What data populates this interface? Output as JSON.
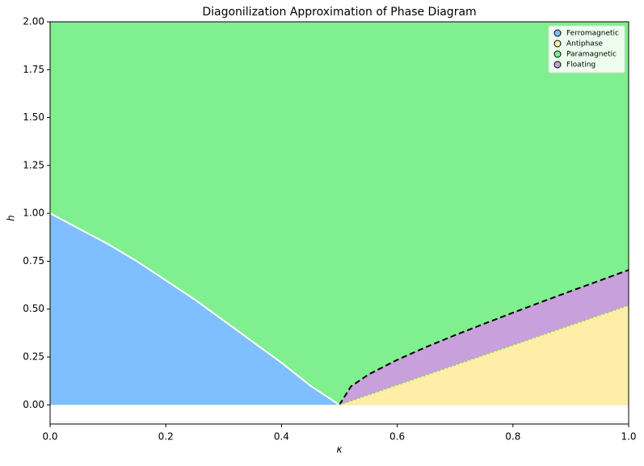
{
  "chart_data": {
    "type": "phase",
    "title": "Diagonilization Approximation of Phase Diagram",
    "xlabel": "κ",
    "ylabel": "h",
    "xlim": [
      0,
      1
    ],
    "ylim": [
      -0.1,
      2
    ],
    "xticks": [
      {
        "value": 0,
        "label": "0.0"
      },
      0.2,
      0.4,
      0.6,
      0.8,
      {
        "value": 1,
        "label": "1.0"
      }
    ],
    "yticks": [
      {
        "value": 0,
        "label": "0.00"
      },
      0.25,
      {
        "value": 0.5,
        "label": "0.50"
      },
      0.75,
      {
        "value": 1,
        "label": "1.00"
      },
      1.25,
      {
        "value": 1.5,
        "label": "1.50"
      },
      1.75,
      {
        "value": 2,
        "label": "2.00"
      }
    ],
    "legend": "upper right",
    "series": [
      {
        "name": "Ferromagnetic",
        "color": "#80bfff"
      },
      {
        "name": "Antiphase",
        "color": "#ffeea8"
      },
      {
        "name": "Paramagnetic",
        "color": "#80ef8f"
      },
      {
        "name": "Floating",
        "color": "#c8a0dc"
      }
    ],
    "boundaries": [
      {
        "style": "solid",
        "color": "#ffffff",
        "x": [
          0,
          0.05,
          0.1,
          0.15,
          0.2,
          0.25,
          0.3,
          0.35,
          0.4,
          0.45,
          0.5
        ],
        "values": [
          1.0,
          0.92,
          0.84,
          0.75,
          0.65,
          0.55,
          0.44,
          0.33,
          0.22,
          0.1,
          0
        ]
      },
      {
        "style": "dashed",
        "color": "#000000",
        "x": [
          0.5,
          0.52,
          0.55,
          0.6,
          0.65,
          0.7,
          0.75,
          0.8,
          0.85,
          0.9,
          0.95,
          1
        ],
        "values": [
          0,
          0.096,
          0.158,
          0.235,
          0.302,
          0.364,
          0.423,
          0.481,
          0.538,
          0.594,
          0.649,
          0.704
        ]
      },
      {
        "style": "dotted",
        "color": "#8fd35a",
        "x": [
          0.5,
          0.625,
          0.75,
          0.875,
          1
        ],
        "values": [
          0,
          0.13,
          0.26,
          0.39,
          0.52
        ]
      }
    ]
  }
}
